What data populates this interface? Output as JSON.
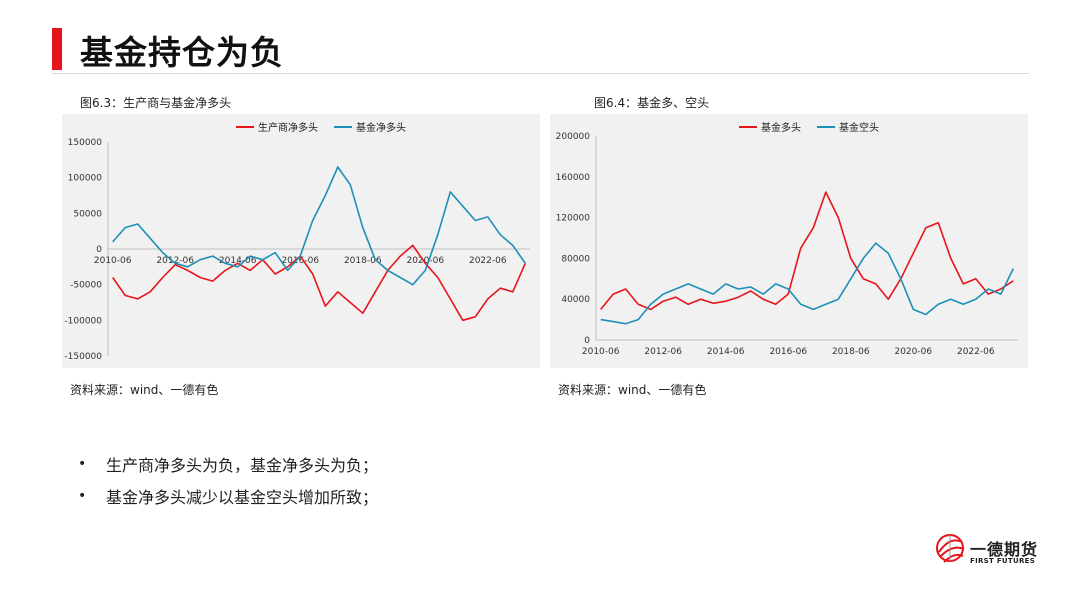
{
  "page": {
    "title": "基金持仓为负"
  },
  "left_chart": {
    "caption": "图6.3：生产商与基金净多头",
    "source": "资料来源：wind、一德有色"
  },
  "right_chart": {
    "caption": "图6.4：基金多、空头",
    "source": "资料来源：wind、一德有色"
  },
  "bullets": [
    "生产商净多头为负，基金净多头为负；",
    "基金净多头减少以基金空头增加所致；"
  ],
  "logo": {
    "cn": "一德期货",
    "en": "FIRST FUTURES"
  },
  "chart_data": [
    {
      "type": "line",
      "legend_position": "top",
      "grid": false,
      "xlim": [
        2010.25,
        2023.75
      ],
      "ylim": [
        -150000,
        150000
      ],
      "yticks": [
        "150000",
        "100000",
        "50000",
        "0",
        "-50000",
        "-100000",
        "-150000"
      ],
      "xticks": [
        "2010-06",
        "2012-06",
        "2014-06",
        "2016-06",
        "2018-06",
        "2020-06",
        "2022-06"
      ],
      "x": [
        2010.4,
        2010.8,
        2011.2,
        2011.6,
        2012.0,
        2012.4,
        2012.8,
        2013.2,
        2013.6,
        2014.0,
        2014.4,
        2014.8,
        2015.2,
        2015.6,
        2016.0,
        2016.4,
        2016.8,
        2017.2,
        2017.6,
        2018.0,
        2018.4,
        2018.8,
        2019.2,
        2019.6,
        2020.0,
        2020.4,
        2020.8,
        2021.2,
        2021.6,
        2022.0,
        2022.4,
        2022.8,
        2023.2,
        2023.6
      ],
      "series": [
        {
          "name": "生产商净多头",
          "color": "#e6151b",
          "values": [
            -40000,
            -65000,
            -70000,
            -60000,
            -40000,
            -22000,
            -30000,
            -40000,
            -45000,
            -30000,
            -20000,
            -30000,
            -15000,
            -35000,
            -25000,
            -10000,
            -35000,
            -80000,
            -60000,
            -75000,
            -90000,
            -60000,
            -30000,
            -10000,
            5000,
            -20000,
            -40000,
            -70000,
            -100000,
            -95000,
            -70000,
            -55000,
            -60000,
            -20000
          ]
        },
        {
          "name": "基金净多头",
          "color": "#1e90b8",
          "values": [
            10000,
            30000,
            35000,
            15000,
            -5000,
            -20000,
            -25000,
            -15000,
            -10000,
            -20000,
            -25000,
            -10000,
            -15000,
            -5000,
            -30000,
            -10000,
            40000,
            75000,
            115000,
            90000,
            30000,
            -15000,
            -30000,
            -40000,
            -50000,
            -30000,
            20000,
            80000,
            60000,
            40000,
            45000,
            20000,
            5000,
            -20000
          ]
        }
      ]
    },
    {
      "type": "line",
      "legend_position": "top",
      "grid": false,
      "xlim": [
        2010.25,
        2023.75
      ],
      "ylim": [
        0,
        200000
      ],
      "yticks": [
        "200000",
        "160000",
        "120000",
        "80000",
        "40000",
        "0"
      ],
      "xticks": [
        "2010-06",
        "2012-06",
        "2014-06",
        "2016-06",
        "2018-06",
        "2020-06",
        "2022-06"
      ],
      "x": [
        2010.4,
        2010.8,
        2011.2,
        2011.6,
        2012.0,
        2012.4,
        2012.8,
        2013.2,
        2013.6,
        2014.0,
        2014.4,
        2014.8,
        2015.2,
        2015.6,
        2016.0,
        2016.4,
        2016.8,
        2017.2,
        2017.6,
        2018.0,
        2018.4,
        2018.8,
        2019.2,
        2019.6,
        2020.0,
        2020.4,
        2020.8,
        2021.2,
        2021.6,
        2022.0,
        2022.4,
        2022.8,
        2023.2,
        2023.6
      ],
      "series": [
        {
          "name": "基金多头",
          "color": "#e6151b",
          "values": [
            30000,
            45000,
            50000,
            35000,
            30000,
            38000,
            42000,
            35000,
            40000,
            36000,
            38000,
            42000,
            48000,
            40000,
            35000,
            45000,
            90000,
            110000,
            145000,
            120000,
            80000,
            60000,
            55000,
            40000,
            60000,
            85000,
            110000,
            115000,
            80000,
            55000,
            60000,
            45000,
            50000,
            58000
          ]
        },
        {
          "name": "基金空头",
          "color": "#1e90b8",
          "values": [
            20000,
            18000,
            16000,
            20000,
            35000,
            45000,
            50000,
            55000,
            50000,
            45000,
            55000,
            50000,
            52000,
            45000,
            55000,
            50000,
            35000,
            30000,
            35000,
            40000,
            60000,
            80000,
            95000,
            85000,
            60000,
            30000,
            25000,
            35000,
            40000,
            35000,
            40000,
            50000,
            45000,
            70000
          ]
        }
      ]
    }
  ]
}
